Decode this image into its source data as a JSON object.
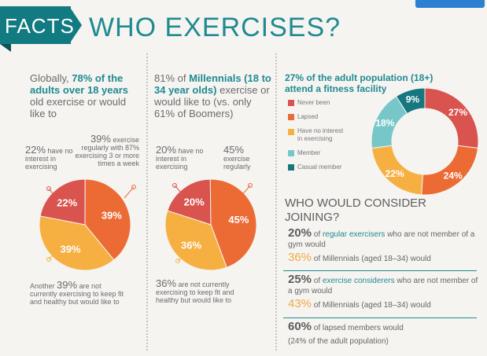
{
  "header": {
    "facts_label": "FACTS",
    "title": "WHO EXERCISES?"
  },
  "colors": {
    "never_been": "#d9534f",
    "lapsed": "#ec6b35",
    "no_interest": "#f6b042",
    "member": "#77c7c9",
    "casual": "#17777f",
    "teal": "#1f8a91"
  },
  "col1": {
    "head_pre": "Globally, ",
    "head_hl": "78% of the adults over 18 years",
    "head_post": " old exercise or would like to",
    "left_stat": {
      "pct": "22%",
      "text": " have no interest in exercising"
    },
    "right_stat": {
      "pct": "39%",
      "text": " exercise regularly with 87% exercising 3 or more times a week"
    },
    "bottom_stat": {
      "pre": "Another ",
      "pct": "39%",
      "text": " are not currently exercising to keep fit and healthy but would like to"
    }
  },
  "col2": {
    "head_pre": "81% of ",
    "head_hl": "Millennials (18 to 34 year olds)",
    "head_post": " exercise or would like to (vs. only 61% of Boomers)",
    "left_stat": {
      "pct": "20%",
      "text": " have no interest in exercising"
    },
    "right_stat": {
      "pct": "45%",
      "text": " exercise regularly"
    },
    "bottom_stat": {
      "pct": "36%",
      "text": " are not currently exercising to keep fit and healthy but would like to"
    }
  },
  "col3": {
    "head_hl": "27% of the adult population (18+) attend a fitness facility",
    "legend": [
      "Never been",
      "Lapsed",
      "Have no interest in exercising",
      "Member",
      "Casual member"
    ]
  },
  "consider": {
    "title": "WHO WOULD CONSIDER JOINING?",
    "rows": [
      {
        "pct": "20%",
        "pre": " of ",
        "kw": "regular exercisers",
        "post": " who are not member of a gym would",
        "pct2": "36%",
        "line2": " of Millennials (aged 18–34) would"
      },
      {
        "pct": "25%",
        "pre": " of ",
        "kw": "exercise considerers",
        "post": " who are not member of a gym would",
        "pct2": "43%",
        "line2": " of Millennials (aged 18–34) would"
      },
      {
        "pct": "60%",
        "pre": " of lapsed members would",
        "kw": "",
        "post": "",
        "pct2": "",
        "line2": "(24% of the adult population)"
      }
    ]
  },
  "chart_data": [
    {
      "type": "pie",
      "labels": [
        "No interest in exercising",
        "Exercise regularly",
        "Would like to exercise"
      ],
      "values": [
        22,
        39,
        39
      ],
      "value_labels": [
        "22%",
        "39%",
        "39%"
      ]
    },
    {
      "type": "pie",
      "labels": [
        "No interest in exercising",
        "Exercise regularly",
        "Would like to exercise"
      ],
      "values": [
        20,
        45,
        36
      ],
      "value_labels": [
        "20%",
        "45%",
        "36%"
      ]
    },
    {
      "type": "pie",
      "donut": true,
      "labels": [
        "Never been",
        "Lapsed",
        "Have no interest in exercising",
        "Member",
        "Casual member"
      ],
      "values": [
        27,
        24,
        22,
        18,
        9
      ],
      "value_labels": [
        "27%",
        "24%",
        "22%",
        "18%",
        "9%"
      ]
    }
  ]
}
